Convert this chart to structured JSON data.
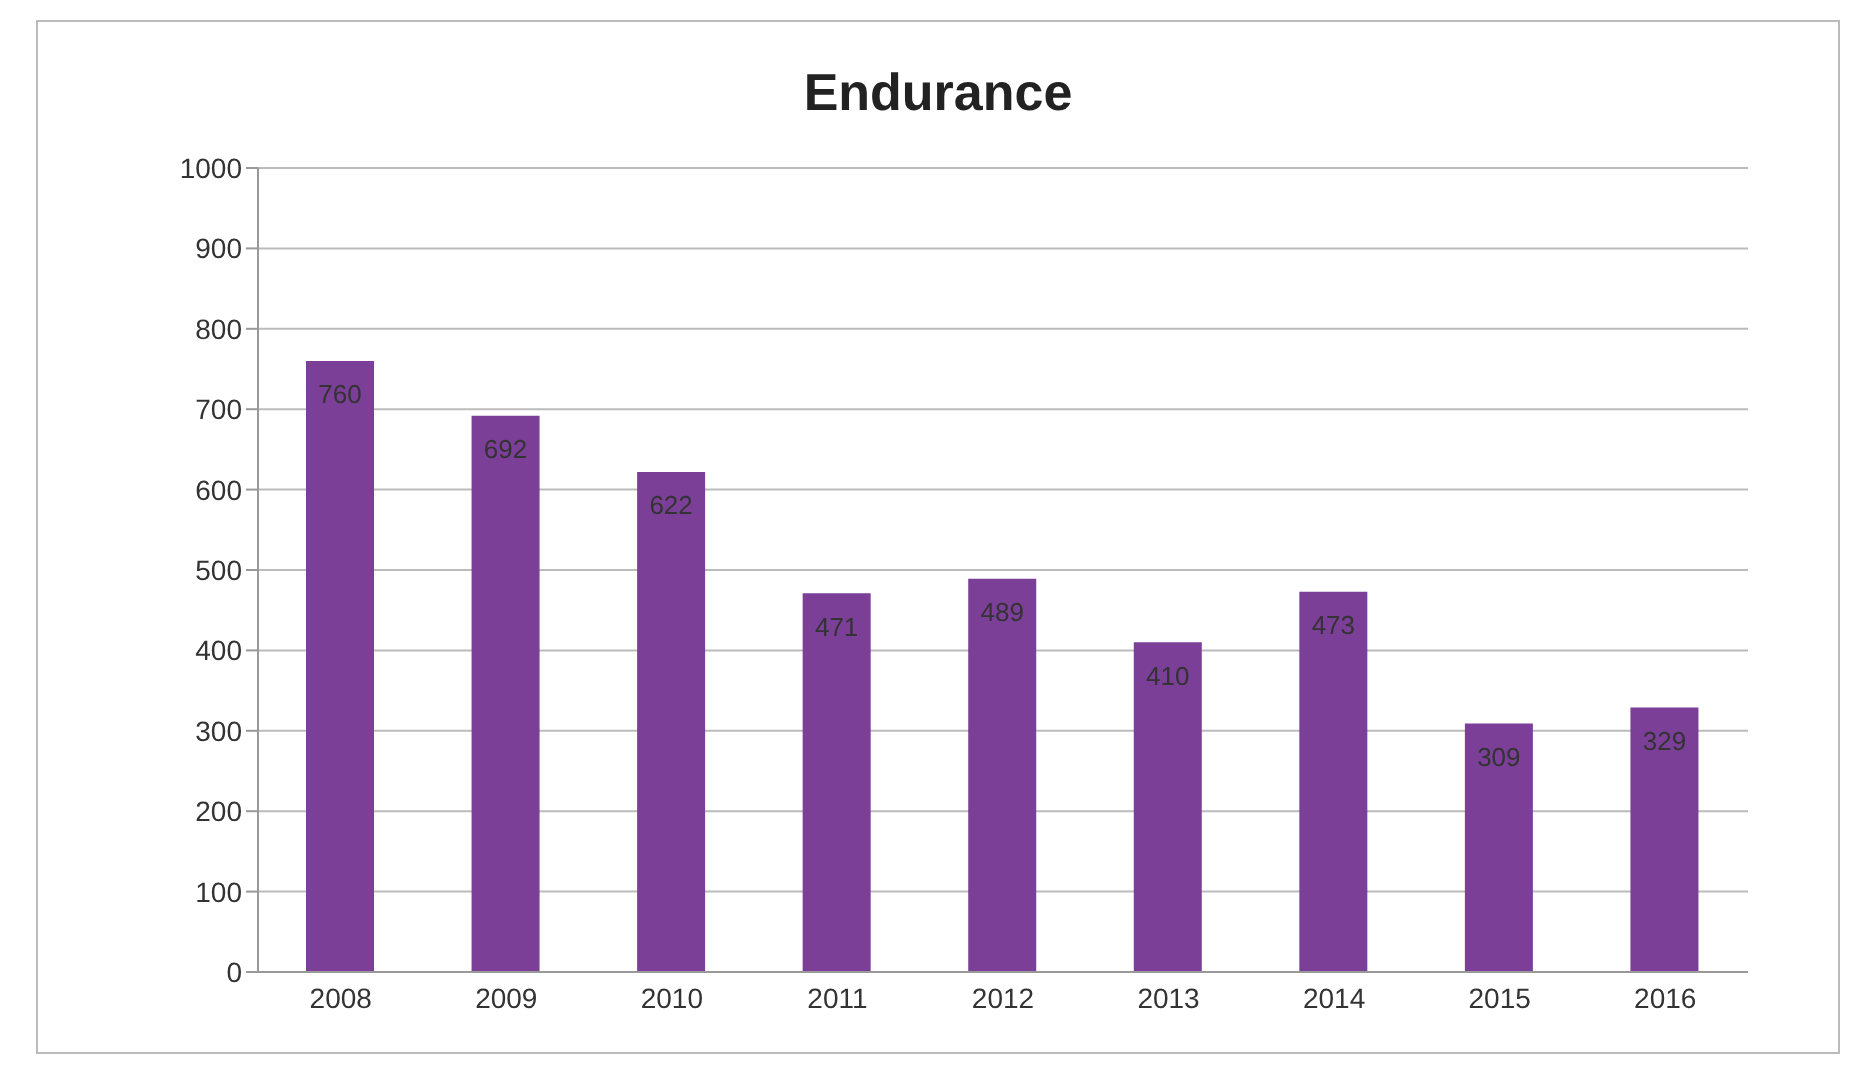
{
  "chart_data": {
    "type": "bar",
    "title": "Endurance",
    "categories": [
      "2008",
      "2009",
      "2010",
      "2011",
      "2012",
      "2013",
      "2014",
      "2015",
      "2016"
    ],
    "values": [
      760,
      692,
      622,
      471,
      489,
      410,
      473,
      309,
      329
    ],
    "color": "#7b3f98",
    "ylim": [
      0,
      1000
    ],
    "yticks": [
      0,
      100,
      200,
      300,
      400,
      500,
      600,
      700,
      800,
      900,
      1000
    ],
    "grid": "y",
    "data_labels": true
  }
}
